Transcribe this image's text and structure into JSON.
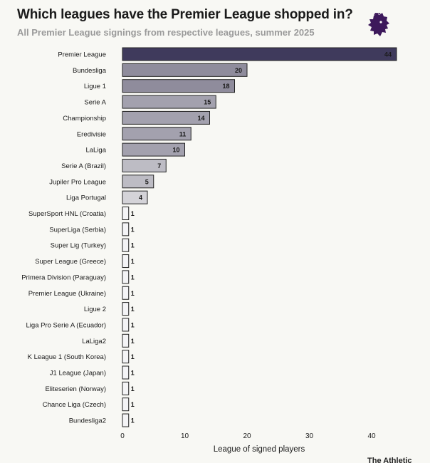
{
  "header": {
    "title": "Which leagues have the Premier League shopped in?",
    "subtitle": "All Premier League signings from respective leagues, summer 2025",
    "brand": "The Athletic",
    "logo_icon": "premier-league-lion-icon"
  },
  "colors": {
    "background": "#f8f8f4",
    "bar_top": "#3f3a5c",
    "bar_dark": "#8f8c9c",
    "bar_mid": "#a3a1ae",
    "bar_light": "#bdbcc4",
    "bar_lighter": "#d4d3d8",
    "bar_lightest": "#f4f4f6",
    "bar_border": "#222222",
    "logo": "#3d195b"
  },
  "chart_data": {
    "type": "bar",
    "orientation": "horizontal",
    "categories": [
      "Premier League",
      "Bundesliga",
      "Ligue 1",
      "Serie A",
      "Championship",
      "Eredivisie",
      "LaLiga",
      "Serie A (Brazil)",
      "Jupiler Pro League",
      "Liga Portugal",
      "SuperSport HNL (Croatia)",
      "SuperLiga (Serbia)",
      "Super Lig (Turkey)",
      "Super League (Greece)",
      "Primera Division (Paraguay)",
      "Premier League (Ukraine)",
      "Ligue 2",
      "Liga Pro Serie A (Ecuador)",
      "LaLiga2",
      "K League 1 (South Korea)",
      "J1 League (Japan)",
      "Eliteserien (Norway)",
      "Chance Liga (Czech)",
      "Bundesliga2"
    ],
    "values": [
      44,
      20,
      18,
      15,
      14,
      11,
      10,
      7,
      5,
      4,
      1,
      1,
      1,
      1,
      1,
      1,
      1,
      1,
      1,
      1,
      1,
      1,
      1,
      1
    ],
    "title": "Which leagues have the Premier League shopped in?",
    "subtitle": "All Premier League signings from respective leagues, summer 2025",
    "xlabel": "League of signed players",
    "ylabel": "",
    "xlim": [
      0,
      44
    ],
    "xticks": [
      0,
      10,
      20,
      30,
      40
    ],
    "grid": false
  }
}
